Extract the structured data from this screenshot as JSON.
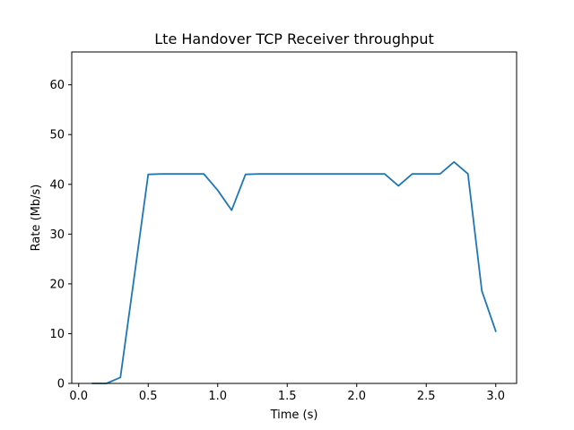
{
  "chart_data": {
    "type": "line",
    "title": "Lte Handover TCP Receiver throughput",
    "xlabel": "Time (s)",
    "ylabel": "Rate (Mb/s)",
    "xlim": [
      -0.05,
      3.15
    ],
    "ylim": [
      0,
      66.6
    ],
    "xticks": [
      0.0,
      0.5,
      1.0,
      1.5,
      2.0,
      2.5,
      3.0
    ],
    "xtick_labels": [
      "0.0",
      "0.5",
      "1.0",
      "1.5",
      "2.0",
      "2.5",
      "3.0"
    ],
    "yticks": [
      0,
      10,
      20,
      30,
      40,
      50,
      60
    ],
    "ytick_labels": [
      "0",
      "10",
      "20",
      "30",
      "40",
      "50",
      "60"
    ],
    "grid": false,
    "series": [
      {
        "color": "#1f77b4",
        "x": [
          0.1,
          0.2,
          0.3,
          0.4,
          0.5,
          0.6,
          0.7,
          0.8,
          0.9,
          1.0,
          1.1,
          1.2,
          1.3,
          1.4,
          1.5,
          1.6,
          1.7,
          1.8,
          1.9,
          2.0,
          2.1,
          2.2,
          2.3,
          2.4,
          2.5,
          2.6,
          2.7,
          2.8,
          2.9,
          3.0
        ],
        "y": [
          0.0,
          0.0,
          1.2,
          21.5,
          42.0,
          42.1,
          42.1,
          42.1,
          42.1,
          38.8,
          34.8,
          42.0,
          42.1,
          42.1,
          42.1,
          42.1,
          42.1,
          42.1,
          42.1,
          42.1,
          42.1,
          42.1,
          39.7,
          42.1,
          42.1,
          42.1,
          44.5,
          42.1,
          18.6,
          10.5
        ]
      }
    ]
  }
}
